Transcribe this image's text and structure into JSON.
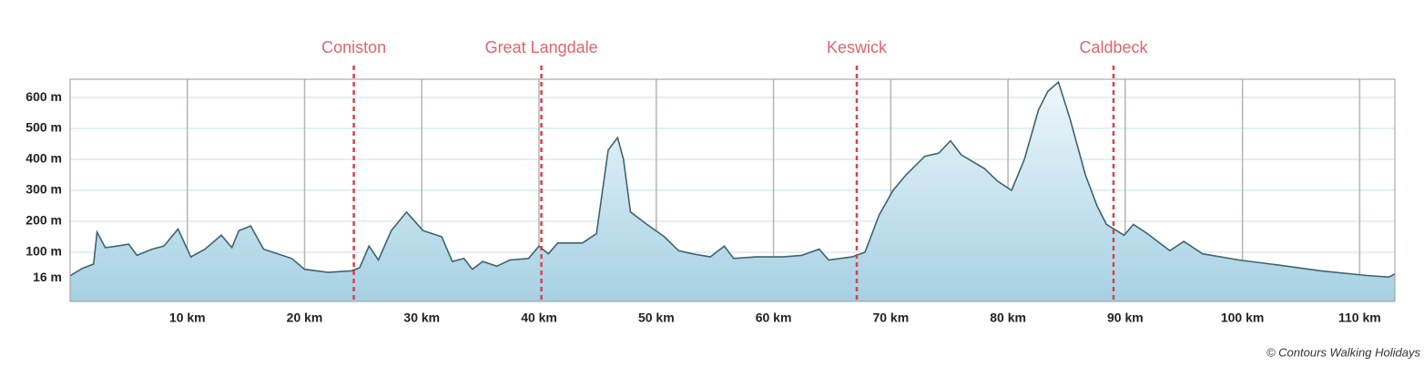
{
  "chart_data": {
    "type": "area",
    "x": [
      0,
      1,
      2,
      2.3,
      3,
      4,
      5,
      5.7,
      7,
      8,
      9.2,
      10.3,
      11.5,
      12.9,
      13.8,
      14.4,
      15.4,
      16.5,
      18.9,
      20,
      22,
      24,
      24.7,
      25.5,
      26.3,
      27.4,
      28.7,
      30.1,
      31.7,
      32.6,
      33.6,
      34.3,
      35.2,
      36.4,
      37.5,
      39.1,
      40,
      40.8,
      41.6,
      43.7,
      44.9,
      45.9,
      46.7,
      47.2,
      47.8,
      49.2,
      50.7,
      51.9,
      53.1,
      54.6,
      55.8,
      56.6,
      58.5,
      60.8,
      62.4,
      63.9,
      64.7,
      66.7,
      67.8,
      69,
      70.2,
      71.3,
      72.9,
      74.1,
      75.1,
      76,
      78,
      79.1,
      80.3,
      81.4,
      82.6,
      83.4,
      84.3,
      85.3,
      86.6,
      87.6,
      88.4,
      89.9,
      90.7,
      91.9,
      93.8,
      95,
      96.6,
      99.7,
      102.8,
      106.7,
      110.6,
      112.5,
      113
    ],
    "series": [
      {
        "color": "#3d6470",
        "values": [
          24,
          47,
          62,
          165,
          115,
          120,
          126,
          90,
          110,
          120,
          175,
          85,
          110,
          155,
          115,
          170,
          185,
          110,
          80,
          45,
          35,
          40,
          50,
          120,
          75,
          170,
          230,
          170,
          150,
          70,
          80,
          45,
          70,
          55,
          75,
          80,
          120,
          95,
          130,
          130,
          160,
          430,
          470,
          400,
          230,
          190,
          150,
          105,
          95,
          85,
          120,
          80,
          85,
          85,
          90,
          110,
          75,
          85,
          100,
          220,
          300,
          350,
          410,
          420,
          460,
          415,
          370,
          330,
          300,
          400,
          560,
          620,
          650,
          530,
          350,
          250,
          190,
          155,
          190,
          160,
          105,
          135,
          95,
          75,
          60,
          40,
          25,
          20,
          30
        ]
      }
    ],
    "xlim": [
      0,
      113
    ],
    "ylim": [
      -59,
      659
    ],
    "xticks": [
      {
        "value": 10,
        "label": "10 km"
      },
      {
        "value": 20,
        "label": "20 km"
      },
      {
        "value": 30,
        "label": "30 km"
      },
      {
        "value": 40,
        "label": "40 km"
      },
      {
        "value": 50,
        "label": "50 km"
      },
      {
        "value": 60,
        "label": "60 km"
      },
      {
        "value": 70,
        "label": "70 km"
      },
      {
        "value": 80,
        "label": "80 km"
      },
      {
        "value": 90,
        "label": "90 km"
      },
      {
        "value": 100,
        "label": "100 km"
      },
      {
        "value": 110,
        "label": "110 km"
      }
    ],
    "yticks": [
      {
        "value": 16,
        "label": "16 m"
      },
      {
        "value": 100,
        "label": "100 m"
      },
      {
        "value": 200,
        "label": "200 m"
      },
      {
        "value": 300,
        "label": "300 m"
      },
      {
        "value": 400,
        "label": "400 m"
      },
      {
        "value": 500,
        "label": "500 m"
      },
      {
        "value": 600,
        "label": "600 m"
      }
    ],
    "towns": [
      {
        "name": "Coniston",
        "km": 24.2
      },
      {
        "name": "Great Langdale",
        "km": 40.2
      },
      {
        "name": "Keswick",
        "km": 67.1
      },
      {
        "name": "Caldbeck",
        "km": 89.0
      }
    ],
    "town_color": "#d9414d",
    "credit": "© Contours Walking Holidays"
  }
}
